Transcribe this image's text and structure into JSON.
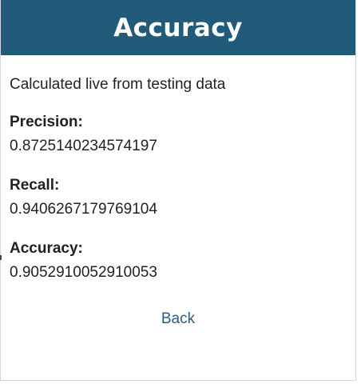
{
  "header": {
    "title": "Accuracy",
    "background_color": "#215b79"
  },
  "subtitle": "Calculated live from testing data",
  "metrics": [
    {
      "label": "Precision:",
      "value": "0.8725140234574197"
    },
    {
      "label": "Recall:",
      "value": "0.9406267179769104"
    },
    {
      "label": "Accuracy:",
      "value": "0.9052910052910053"
    }
  ],
  "back_link": {
    "label": "Back",
    "color": "#2a5b86"
  }
}
